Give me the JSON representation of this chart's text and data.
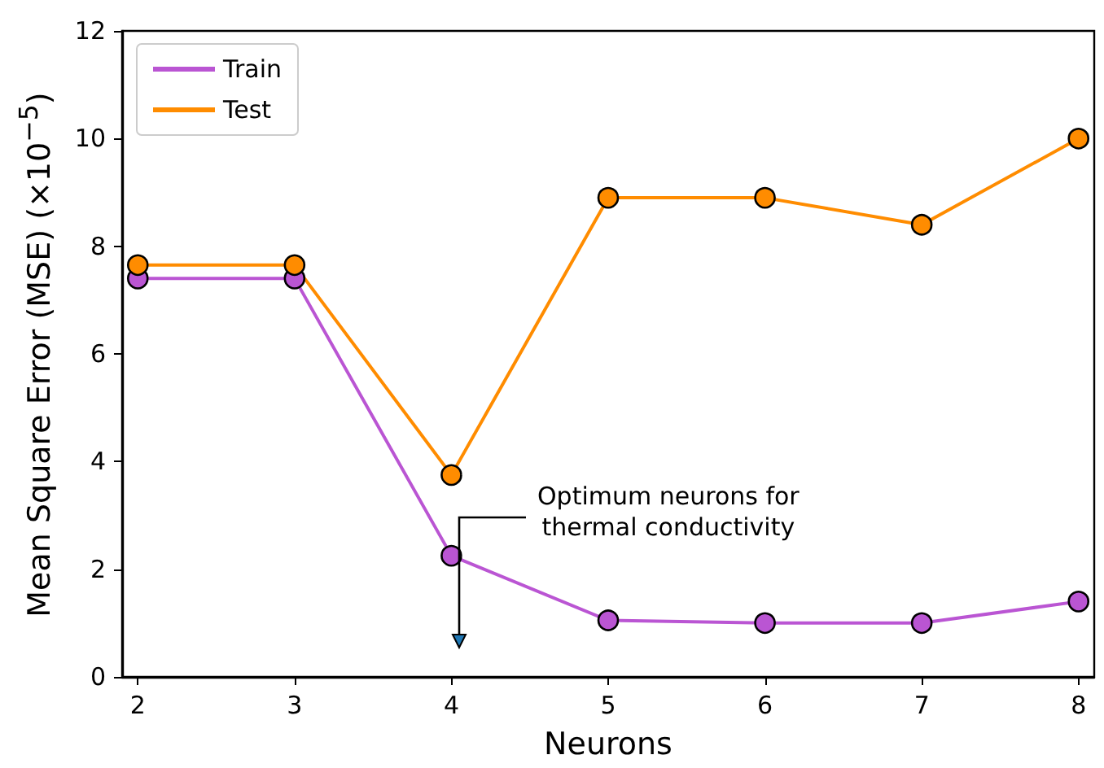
{
  "chart_data": {
    "type": "line",
    "xlabel": "Neurons",
    "ylabel": "Mean Square Error (MSE) (×10$^{−5}$)",
    "x": [
      2,
      3,
      4,
      5,
      6,
      7,
      8
    ],
    "series": [
      {
        "name": "Train",
        "color": "#ba55d3",
        "values": [
          7.4,
          7.4,
          2.25,
          1.05,
          1.0,
          1.0,
          1.4
        ]
      },
      {
        "name": "Test",
        "color": "#ff8c00",
        "values": [
          7.65,
          7.65,
          3.75,
          8.9,
          8.9,
          8.4,
          10.0
        ]
      }
    ],
    "xlim": [
      1.9,
      8.1
    ],
    "xticks": [
      2,
      3,
      4,
      5,
      6,
      7,
      8
    ],
    "ylim": [
      0,
      12
    ],
    "yticks": [
      0,
      2,
      4,
      6,
      8,
      10,
      12
    ],
    "grid": false,
    "legend": "top left",
    "marker": "circle",
    "line_style": "solid",
    "annotations": [
      "Optimum neurons for\nthermal conductivity"
    ]
  }
}
